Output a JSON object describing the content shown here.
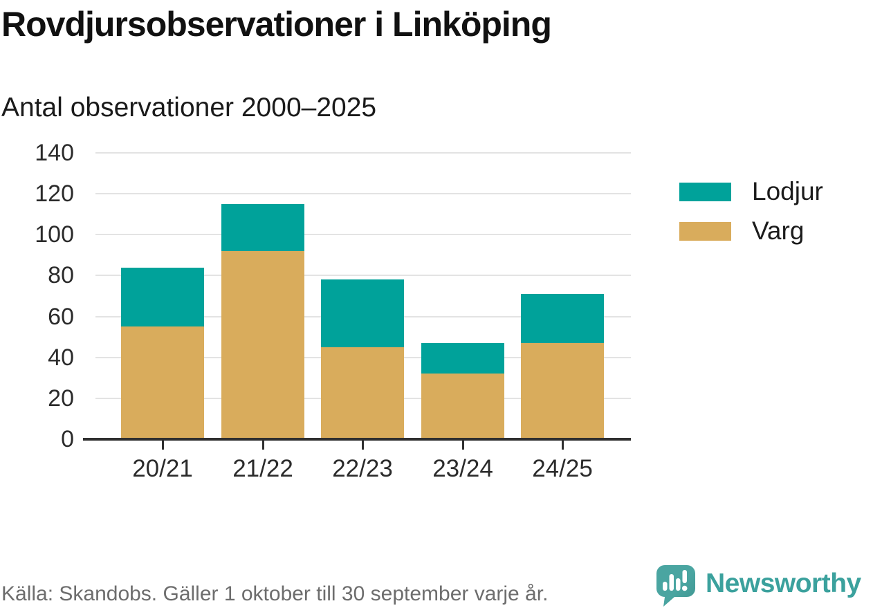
{
  "title": "Rovdjursobservationer i Linköping",
  "subtitle": "Antal observationer 2000–2025",
  "footer": {
    "source": "Källa: Skandobs. Gäller 1 oktober till 30 september varje år."
  },
  "branding": {
    "name": "Newsworthy",
    "logo_icon": "speech-bubble-bar-chart-icon",
    "logo_color": "#4aa5a1",
    "logo_color_dark": "#3e948f",
    "wordmark_color": "#3ba19d"
  },
  "colors": {
    "lodjur": "#00a29a",
    "varg": "#d9ac5c",
    "grid": "#e3e3e3",
    "axis": "#2f2f2f",
    "text": "#2b2b2b",
    "muted": "#6d6d6d"
  },
  "chart_data": {
    "type": "bar",
    "stacked": true,
    "title": "Rovdjursobservationer i Linköping",
    "subtitle": "Antal observationer 2000–2025",
    "categories": [
      "20/21",
      "21/22",
      "22/23",
      "23/24",
      "24/25"
    ],
    "series": [
      {
        "name": "Varg",
        "color": "#d9ac5c",
        "values": [
          55,
          92,
          45,
          32,
          47
        ]
      },
      {
        "name": "Lodjur",
        "color": "#00a29a",
        "values": [
          29,
          23,
          33,
          15,
          24
        ]
      }
    ],
    "totals": [
      84,
      115,
      78,
      47,
      71
    ],
    "xlabel": "",
    "ylabel": "",
    "ylim": [
      0,
      140
    ],
    "yticks": [
      0,
      20,
      40,
      60,
      80,
      100,
      120,
      140
    ],
    "grid": true,
    "legend": [
      "Lodjur",
      "Varg"
    ],
    "legend_position": "right"
  }
}
